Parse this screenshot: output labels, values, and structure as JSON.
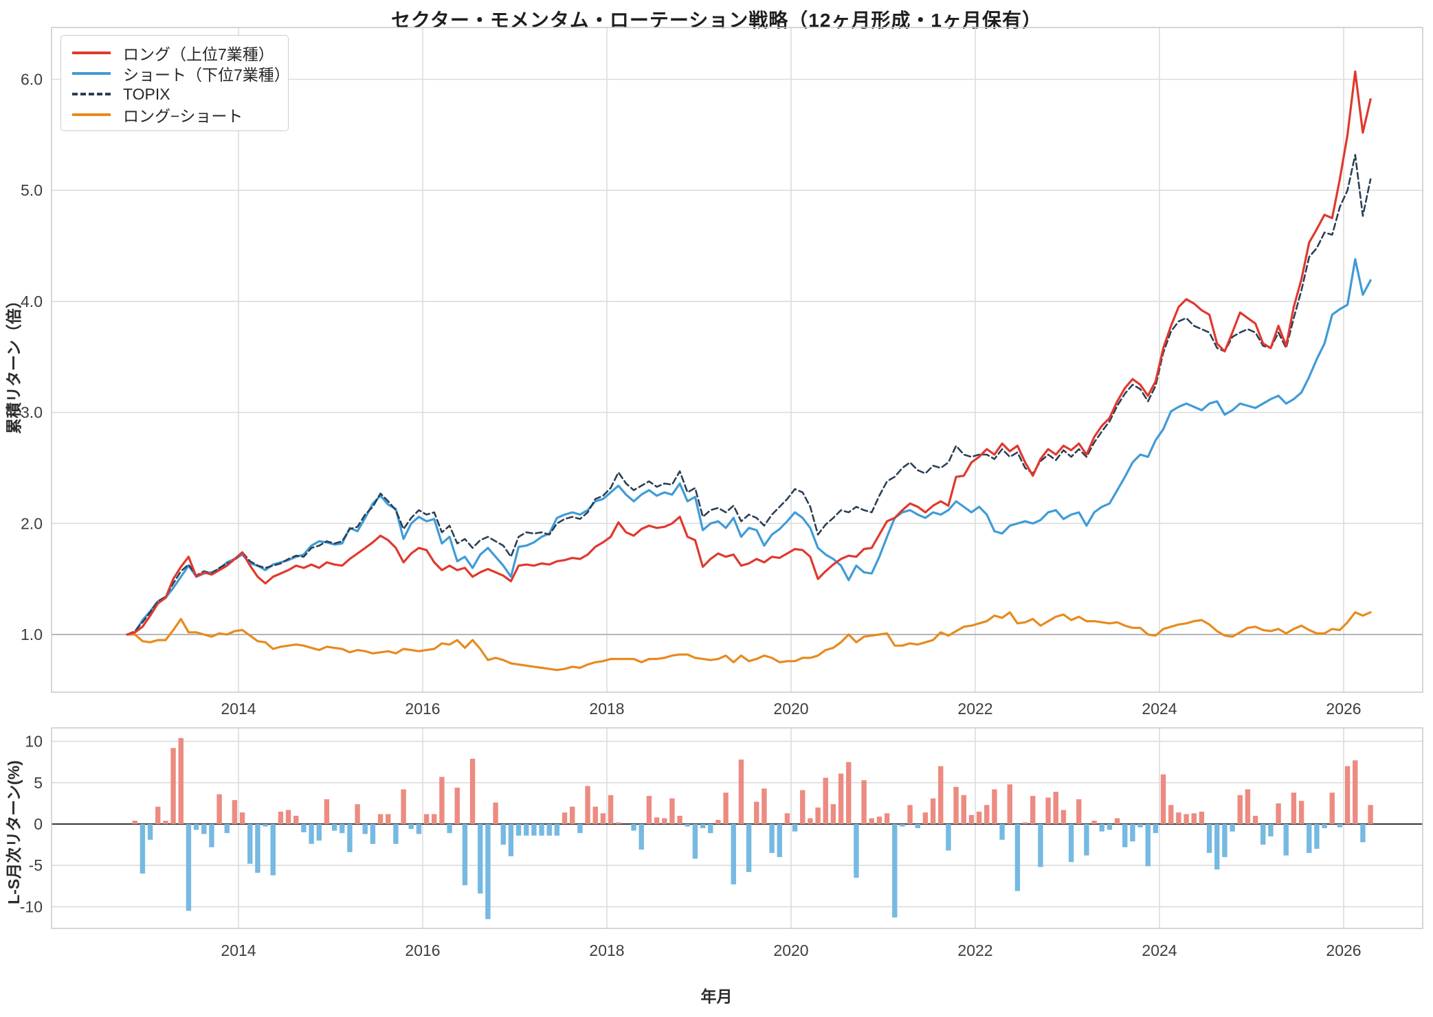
{
  "title": "セクター・モメンタム・ローテーション戦略（12ヶ月形成・1ヶ月保有）",
  "colors": {
    "long": "#e0382e",
    "short": "#3f9bd8",
    "topix": "#2a3f55",
    "long_short": "#e88a1d",
    "bar_positive": "#ec8b81",
    "bar_negative": "#76b9e2",
    "grid": "#dcdcdc",
    "grid_unit_line": "#b5b5b5",
    "zero_line": "#1a1a1a",
    "spine": "#cccccc",
    "tick_text": "#3d3d3d"
  },
  "legend": {
    "items": [
      {
        "label": "ロング（上位7業種）",
        "color": "#e0382e",
        "style": "solid"
      },
      {
        "label": "ショート（下位7業種）",
        "color": "#3f9bd8",
        "style": "solid"
      },
      {
        "label": "TOPIX",
        "color": "#2a3f55",
        "style": "dashed"
      },
      {
        "label": "ロング−ショート",
        "color": "#e88a1d",
        "style": "solid"
      }
    ]
  },
  "axes": {
    "top": {
      "ylabel": "累積リターン（倍）",
      "y_ticks": [
        "1.0",
        "2.0",
        "3.0",
        "4.0",
        "5.0",
        "6.0"
      ],
      "x_ticks": [
        "2014",
        "2016",
        "2018",
        "2020",
        "2022",
        "2024",
        "2026"
      ]
    },
    "bottom": {
      "ylabel": "L-S月次リターン(%)",
      "xlabel": "年月",
      "y_ticks": [
        "-10",
        "-5",
        "0",
        "5",
        "10"
      ],
      "x_ticks": [
        "2014",
        "2016",
        "2018",
        "2020",
        "2022",
        "2024",
        "2026"
      ]
    }
  },
  "chart_data": [
    {
      "type": "line",
      "panel": "top",
      "title": "セクター・モメンタム・ローテーション戦略（12ヶ月形成・1ヶ月保有）",
      "ylabel": "累積リターン（倍）",
      "start_month": "2012-09",
      "freq": "monthly",
      "x_tick_years": [
        2014,
        2016,
        2018,
        2020,
        2022,
        2024,
        2026
      ],
      "y_grid_values": [
        1.0,
        2.0,
        3.0,
        4.0,
        5.0,
        6.0
      ],
      "ylim": [
        0.48,
        6.47
      ],
      "legend_position": "upper-left",
      "series": [
        {
          "name": "ロング（上位7業種）",
          "color": "#e0382e",
          "dash": null,
          "values": [
            1.0,
            1.02,
            1.07,
            1.17,
            1.28,
            1.33,
            1.5,
            1.61,
            1.7,
            1.52,
            1.56,
            1.54,
            1.58,
            1.62,
            1.68,
            1.74,
            1.62,
            1.52,
            1.46,
            1.52,
            1.55,
            1.58,
            1.62,
            1.6,
            1.63,
            1.6,
            1.65,
            1.63,
            1.62,
            1.68,
            1.73,
            1.78,
            1.83,
            1.89,
            1.85,
            1.78,
            1.65,
            1.73,
            1.78,
            1.76,
            1.65,
            1.58,
            1.62,
            1.58,
            1.6,
            1.52,
            1.56,
            1.59,
            1.56,
            1.53,
            1.48,
            1.62,
            1.63,
            1.62,
            1.64,
            1.63,
            1.66,
            1.67,
            1.69,
            1.68,
            1.72,
            1.79,
            1.83,
            1.88,
            2.01,
            1.92,
            1.89,
            1.95,
            1.98,
            1.96,
            1.97,
            2.0,
            2.06,
            1.88,
            1.85,
            1.61,
            1.68,
            1.73,
            1.7,
            1.72,
            1.62,
            1.64,
            1.68,
            1.65,
            1.7,
            1.69,
            1.73,
            1.77,
            1.76,
            1.7,
            1.5,
            1.57,
            1.63,
            1.68,
            1.71,
            1.7,
            1.77,
            1.78,
            1.9,
            2.02,
            2.05,
            2.12,
            2.18,
            2.15,
            2.1,
            2.16,
            2.2,
            2.16,
            2.42,
            2.43,
            2.55,
            2.6,
            2.67,
            2.62,
            2.72,
            2.65,
            2.7,
            2.55,
            2.43,
            2.58,
            2.67,
            2.62,
            2.7,
            2.66,
            2.72,
            2.62,
            2.78,
            2.88,
            2.95,
            3.1,
            3.22,
            3.3,
            3.25,
            3.15,
            3.28,
            3.58,
            3.78,
            3.95,
            4.02,
            3.98,
            3.92,
            3.88,
            3.62,
            3.55,
            3.72,
            3.9,
            3.85,
            3.8,
            3.62,
            3.58,
            3.78,
            3.6,
            3.95,
            4.2,
            4.53,
            4.65,
            4.78,
            4.75,
            5.1,
            5.5,
            6.07,
            5.52,
            5.82
          ]
        },
        {
          "name": "ショート（下位7業種）",
          "color": "#3f9bd8",
          "dash": null,
          "values": [
            1.0,
            1.02,
            1.13,
            1.21,
            1.3,
            1.33,
            1.42,
            1.52,
            1.62,
            1.52,
            1.55,
            1.56,
            1.59,
            1.65,
            1.68,
            1.72,
            1.64,
            1.62,
            1.58,
            1.63,
            1.65,
            1.67,
            1.7,
            1.72,
            1.8,
            1.84,
            1.83,
            1.81,
            1.82,
            1.96,
            1.93,
            2.05,
            2.18,
            2.25,
            2.17,
            2.13,
            1.86,
            2.0,
            2.06,
            2.02,
            2.04,
            1.82,
            1.88,
            1.66,
            1.7,
            1.6,
            1.72,
            1.78,
            1.7,
            1.62,
            1.52,
            1.79,
            1.8,
            1.83,
            1.88,
            1.91,
            2.05,
            2.08,
            2.1,
            2.08,
            2.12,
            2.2,
            2.22,
            2.28,
            2.34,
            2.26,
            2.2,
            2.26,
            2.3,
            2.25,
            2.28,
            2.26,
            2.36,
            2.2,
            2.24,
            1.94,
            2.0,
            2.02,
            1.96,
            2.05,
            1.88,
            1.96,
            1.94,
            1.8,
            1.9,
            1.95,
            2.02,
            2.1,
            2.05,
            1.96,
            1.78,
            1.72,
            1.68,
            1.62,
            1.49,
            1.62,
            1.56,
            1.55,
            1.7,
            1.88,
            2.05,
            2.1,
            2.12,
            2.08,
            2.05,
            2.1,
            2.08,
            2.12,
            2.2,
            2.15,
            2.1,
            2.15,
            2.08,
            1.93,
            1.91,
            1.98,
            2.0,
            2.02,
            2.0,
            2.03,
            2.1,
            2.12,
            2.04,
            2.08,
            2.1,
            1.98,
            2.1,
            2.15,
            2.18,
            2.3,
            2.42,
            2.55,
            2.62,
            2.6,
            2.75,
            2.85,
            3.01,
            3.05,
            3.08,
            3.05,
            3.02,
            3.08,
            3.1,
            2.98,
            3.02,
            3.08,
            3.06,
            3.04,
            3.08,
            3.12,
            3.15,
            3.08,
            3.12,
            3.18,
            3.32,
            3.48,
            3.62,
            3.88,
            3.93,
            3.97,
            4.38,
            4.06,
            4.19
          ]
        },
        {
          "name": "TOPIX",
          "color": "#2a3f55",
          "dash": "9 5",
          "values": [
            1.0,
            1.03,
            1.11,
            1.2,
            1.3,
            1.34,
            1.46,
            1.57,
            1.63,
            1.53,
            1.57,
            1.55,
            1.6,
            1.64,
            1.67,
            1.74,
            1.66,
            1.62,
            1.6,
            1.62,
            1.64,
            1.68,
            1.71,
            1.7,
            1.78,
            1.8,
            1.84,
            1.82,
            1.84,
            1.95,
            1.97,
            2.08,
            2.15,
            2.27,
            2.2,
            2.12,
            1.95,
            2.05,
            2.12,
            2.08,
            2.1,
            1.92,
            1.98,
            1.82,
            1.86,
            1.78,
            1.85,
            1.88,
            1.84,
            1.8,
            1.7,
            1.88,
            1.92,
            1.91,
            1.92,
            1.9,
            2.0,
            2.04,
            2.06,
            2.04,
            2.1,
            2.22,
            2.25,
            2.32,
            2.46,
            2.36,
            2.3,
            2.34,
            2.38,
            2.33,
            2.36,
            2.35,
            2.47,
            2.28,
            2.32,
            2.06,
            2.12,
            2.14,
            2.1,
            2.16,
            2.02,
            2.08,
            2.05,
            1.98,
            2.08,
            2.15,
            2.22,
            2.31,
            2.28,
            2.15,
            1.9,
            1.99,
            2.05,
            2.12,
            2.1,
            2.15,
            2.12,
            2.1,
            2.25,
            2.38,
            2.42,
            2.5,
            2.55,
            2.48,
            2.45,
            2.52,
            2.5,
            2.55,
            2.7,
            2.62,
            2.6,
            2.62,
            2.62,
            2.58,
            2.67,
            2.6,
            2.64,
            2.5,
            2.45,
            2.56,
            2.62,
            2.57,
            2.66,
            2.6,
            2.67,
            2.6,
            2.73,
            2.83,
            2.92,
            3.06,
            3.17,
            3.25,
            3.21,
            3.1,
            3.24,
            3.54,
            3.73,
            3.82,
            3.85,
            3.78,
            3.75,
            3.72,
            3.58,
            3.55,
            3.68,
            3.72,
            3.75,
            3.72,
            3.6,
            3.58,
            3.72,
            3.58,
            3.85,
            4.1,
            4.4,
            4.48,
            4.62,
            4.6,
            4.85,
            5.0,
            5.32,
            4.77,
            5.1
          ]
        },
        {
          "name": "ロング−ショート",
          "color": "#e88a1d",
          "dash": null,
          "values": [
            1.0,
            1.0,
            0.94,
            0.93,
            0.95,
            0.95,
            1.04,
            1.14,
            1.02,
            1.02,
            1.0,
            0.98,
            1.01,
            1.0,
            1.03,
            1.04,
            0.99,
            0.94,
            0.93,
            0.87,
            0.89,
            0.9,
            0.91,
            0.9,
            0.88,
            0.86,
            0.89,
            0.88,
            0.87,
            0.84,
            0.86,
            0.85,
            0.83,
            0.84,
            0.85,
            0.83,
            0.87,
            0.86,
            0.85,
            0.86,
            0.87,
            0.92,
            0.91,
            0.95,
            0.88,
            0.95,
            0.87,
            0.77,
            0.79,
            0.77,
            0.74,
            0.73,
            0.72,
            0.71,
            0.7,
            0.69,
            0.68,
            0.69,
            0.71,
            0.7,
            0.73,
            0.75,
            0.76,
            0.78,
            0.78,
            0.78,
            0.78,
            0.75,
            0.78,
            0.78,
            0.79,
            0.81,
            0.82,
            0.82,
            0.79,
            0.78,
            0.77,
            0.78,
            0.81,
            0.75,
            0.81,
            0.76,
            0.78,
            0.81,
            0.79,
            0.75,
            0.76,
            0.76,
            0.79,
            0.79,
            0.81,
            0.86,
            0.88,
            0.93,
            1.0,
            0.93,
            0.98,
            0.99,
            1.0,
            1.01,
            0.9,
            0.9,
            0.92,
            0.91,
            0.93,
            0.95,
            1.02,
            0.99,
            1.03,
            1.07,
            1.08,
            1.1,
            1.12,
            1.17,
            1.15,
            1.2,
            1.1,
            1.11,
            1.14,
            1.08,
            1.12,
            1.16,
            1.18,
            1.13,
            1.16,
            1.12,
            1.12,
            1.11,
            1.1,
            1.11,
            1.08,
            1.06,
            1.06,
            1.0,
            0.99,
            1.05,
            1.07,
            1.09,
            1.1,
            1.12,
            1.13,
            1.09,
            1.03,
            0.99,
            0.98,
            1.02,
            1.06,
            1.07,
            1.04,
            1.03,
            1.05,
            1.01,
            1.05,
            1.08,
            1.04,
            1.01,
            1.01,
            1.05,
            1.04,
            1.11,
            1.2,
            1.17,
            1.2
          ]
        }
      ]
    },
    {
      "type": "bar",
      "panel": "bottom",
      "ylabel": "L-S月次リターン(%)",
      "xlabel": "年月",
      "start_month": "2012-09",
      "freq": "monthly",
      "x_tick_years": [
        2014,
        2016,
        2018,
        2020,
        2022,
        2024,
        2026
      ],
      "y_grid_values": [
        -10,
        -5,
        5,
        10
      ],
      "ylim": [
        -12.6,
        11.6
      ],
      "colors": {
        "positive": "#ec8b81",
        "negative": "#76b9e2"
      },
      "values": [
        0.0,
        0.4,
        -6.0,
        -1.9,
        2.1,
        0.4,
        9.2,
        10.4,
        -10.5,
        -0.7,
        -1.2,
        -2.8,
        3.6,
        -1.1,
        2.9,
        1.4,
        -4.8,
        -5.9,
        -0.3,
        -6.2,
        1.5,
        1.7,
        1.0,
        -1.0,
        -2.4,
        -2.0,
        3.0,
        -0.8,
        -1.1,
        -3.4,
        2.4,
        -1.2,
        -2.4,
        1.2,
        1.2,
        -2.4,
        4.2,
        -0.6,
        -1.2,
        1.2,
        1.2,
        5.7,
        -1.1,
        4.4,
        -7.4,
        7.9,
        -8.4,
        -11.5,
        2.6,
        -2.5,
        -3.9,
        -1.4,
        -1.4,
        -1.4,
        -1.4,
        -1.4,
        -1.4,
        1.4,
        2.1,
        -1.1,
        4.6,
        2.1,
        1.3,
        3.5,
        0.2,
        0.0,
        -0.8,
        -3.1,
        3.4,
        0.8,
        0.7,
        3.1,
        1.0,
        -0.3,
        -4.2,
        -0.5,
        -1.1,
        0.5,
        3.8,
        -7.3,
        7.8,
        -5.8,
        2.7,
        4.3,
        -3.5,
        -4.0,
        1.3,
        -0.9,
        4.1,
        0.7,
        2.0,
        5.6,
        2.4,
        6.1,
        7.5,
        -6.5,
        5.3,
        0.7,
        0.9,
        1.3,
        -11.3,
        -0.3,
        2.3,
        -0.5,
        1.4,
        3.1,
        7.0,
        -3.2,
        4.5,
        3.5,
        1.1,
        1.5,
        2.3,
        4.2,
        -1.9,
        4.8,
        -8.1,
        0.2,
        3.4,
        -5.2,
        3.2,
        3.9,
        1.7,
        -4.6,
        3.0,
        -3.8,
        0.4,
        -0.9,
        -0.7,
        0.7,
        -2.8,
        -2.1,
        -0.4,
        -5.1,
        -1.1,
        6.0,
        2.3,
        1.4,
        1.2,
        1.3,
        1.5,
        -3.5,
        -5.5,
        -4.0,
        -0.9,
        3.5,
        4.2,
        1.0,
        -2.5,
        -1.5,
        2.5,
        -3.8,
        3.8,
        2.8,
        -3.5,
        -3.0,
        -0.5,
        3.8,
        -0.4,
        7.0,
        7.7,
        -2.2,
        2.3
      ]
    }
  ]
}
